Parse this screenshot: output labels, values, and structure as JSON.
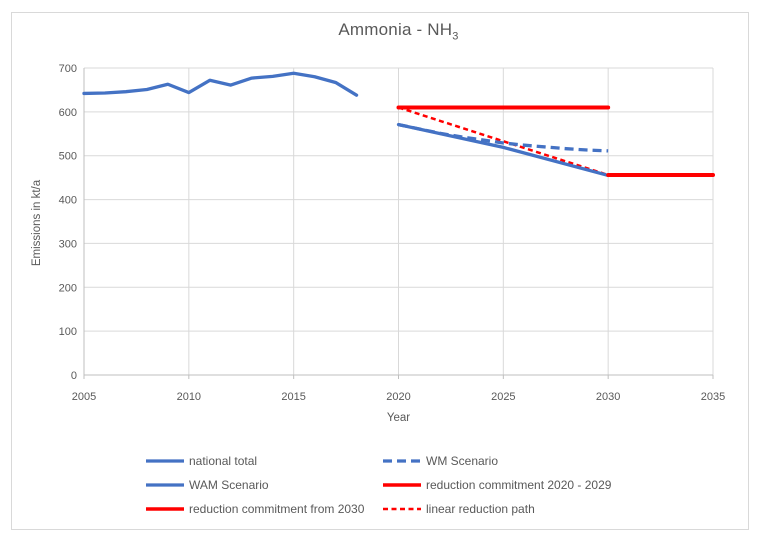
{
  "window": {
    "background": "#FFFFFF",
    "border_color": "#D9D9D9"
  },
  "chart_data": {
    "type": "line",
    "title": "Ammonia - NH",
    "title_subscript": "3",
    "xlabel": "Year",
    "ylabel": "Emissions in kt/a",
    "xlim": [
      2005,
      2035
    ],
    "ylim": [
      0,
      700
    ],
    "xticks": [
      2005,
      2010,
      2015,
      2020,
      2025,
      2030,
      2035
    ],
    "yticks": [
      0,
      100,
      200,
      300,
      400,
      500,
      600,
      700
    ],
    "grid": true,
    "legend_position": "bottom",
    "colors": {
      "blue": "#4472C4",
      "red": "#FF0000",
      "gridline": "#D9D9D9",
      "axis": "#BFBFBF",
      "text": "#595959"
    },
    "series": [
      {
        "name": "national total",
        "color": "#4472C4",
        "dash": "solid",
        "width": 3.3,
        "x": [
          2005,
          2006,
          2007,
          2008,
          2009,
          2010,
          2011,
          2012,
          2013,
          2014,
          2015,
          2016,
          2017,
          2018
        ],
        "y": [
          642,
          643,
          646,
          651,
          663,
          644,
          672,
          661,
          677,
          681,
          688,
          680,
          667,
          638
        ]
      },
      {
        "name": "WM Scenario",
        "color": "#4472C4",
        "dash": "dashed",
        "width": 3.3,
        "x": [
          2020,
          2021,
          2022,
          2023,
          2024,
          2025,
          2026,
          2027,
          2028,
          2029,
          2030
        ],
        "y": [
          571,
          561,
          551,
          543,
          536,
          529,
          524,
          520,
          516,
          513,
          511
        ]
      },
      {
        "name": "WAM Scenario",
        "color": "#4472C4",
        "dash": "solid",
        "width": 3.3,
        "x": [
          2020,
          2025,
          2030
        ],
        "y": [
          571,
          519,
          455
        ]
      },
      {
        "name": "reduction commitment 2020 - 2029",
        "color": "#FF0000",
        "dash": "solid",
        "width": 4,
        "x": [
          2020,
          2030
        ],
        "y": [
          610,
          610
        ]
      },
      {
        "name": "reduction commitment from 2030",
        "color": "#FF0000",
        "dash": "solid",
        "width": 4,
        "x": [
          2030,
          2035
        ],
        "y": [
          456,
          456
        ]
      },
      {
        "name": "linear reduction path",
        "color": "#FF0000",
        "dash": "dashed-small",
        "width": 2.5,
        "x": [
          2020,
          2030
        ],
        "y": [
          610,
          456
        ]
      }
    ]
  }
}
